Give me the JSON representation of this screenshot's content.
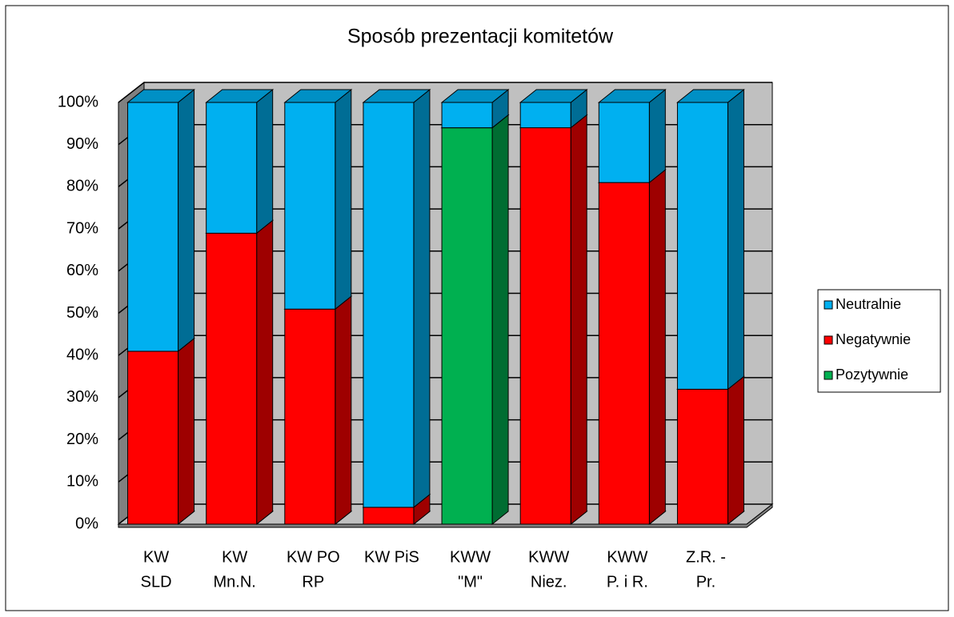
{
  "chart_data": {
    "type": "bar3d_stacked",
    "title": "Sposób prezentacji komitetów",
    "categories": [
      [
        "KW",
        "SLD"
      ],
      [
        "KW",
        "Mn.N."
      ],
      [
        "KW PO",
        "RP"
      ],
      [
        "KW PiS"
      ],
      [
        "KWW",
        "\"M\""
      ],
      [
        "KWW",
        "Niez."
      ],
      [
        "KWW",
        "P. i R."
      ],
      [
        "Z.R. -",
        "Pr."
      ]
    ],
    "series": [
      {
        "name": "Neutralnie",
        "color": "#00b0f0",
        "values": [
          59,
          31,
          49,
          96,
          6,
          6,
          19,
          68
        ]
      },
      {
        "name": "Negatywnie",
        "color": "#ff0000",
        "values": [
          41,
          69,
          51,
          4,
          0,
          94,
          81,
          32
        ]
      },
      {
        "name": "Pozytywnie",
        "color": "#00b050",
        "values": [
          0,
          0,
          0,
          0,
          94,
          0,
          0,
          0
        ]
      }
    ],
    "ylim": [
      0,
      100
    ],
    "yticks": [
      {
        "value": 0,
        "label": "0%"
      },
      {
        "value": 10,
        "label": "10%"
      },
      {
        "value": 20,
        "label": "20%"
      },
      {
        "value": 30,
        "label": "30%"
      },
      {
        "value": 40,
        "label": "40%"
      },
      {
        "value": 50,
        "label": "50%"
      },
      {
        "value": 60,
        "label": "60%"
      },
      {
        "value": 70,
        "label": "70%"
      },
      {
        "value": 80,
        "label": "80%"
      },
      {
        "value": 90,
        "label": "90%"
      },
      {
        "value": 100,
        "label": "100%"
      }
    ],
    "grid": true,
    "legend": "right"
  }
}
